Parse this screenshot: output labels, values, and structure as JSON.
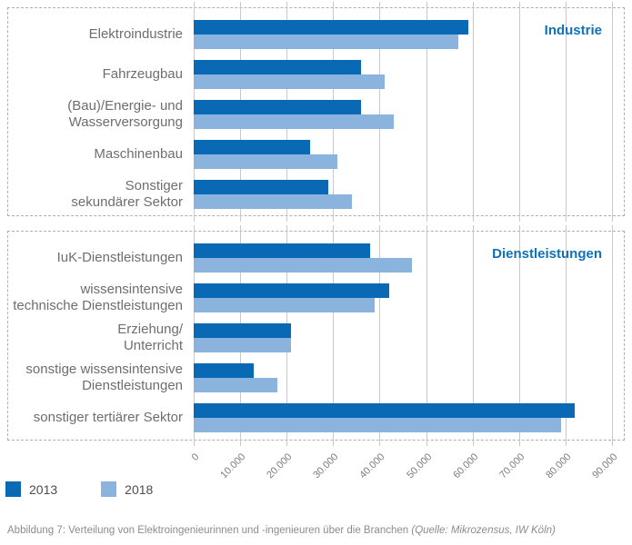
{
  "chart_data": {
    "type": "bar",
    "orientation": "horizontal",
    "xlim": [
      0,
      90000
    ],
    "grid": true,
    "ticks": [
      0,
      10000,
      20000,
      30000,
      40000,
      50000,
      60000,
      70000,
      80000,
      90000
    ],
    "tick_labels": [
      "0",
      "10.000",
      "20.000",
      "30.000",
      "40.000",
      "50.000",
      "60.000",
      "70.000",
      "80.000",
      "90.000"
    ],
    "legend_position": "bottom-left",
    "legend": [
      {
        "name": "2013",
        "color": "#0a69b4"
      },
      {
        "name": "2018",
        "color": "#8ab3dd"
      }
    ],
    "groups": [
      {
        "name": "Industrie",
        "categories": [
          "Elektroindustrie",
          "Fahrzeugbau",
          "(Bau)/Energie- und\nWasserversorgung",
          "Maschinenbau",
          "Sonstiger\nsekundärer Sektor"
        ],
        "series": [
          {
            "name": "2013",
            "values": [
              59000,
              36000,
              36000,
              25000,
              29000
            ]
          },
          {
            "name": "2018",
            "values": [
              57000,
              41000,
              43000,
              31000,
              34000
            ]
          }
        ]
      },
      {
        "name": "Dienstleistungen",
        "categories": [
          "IuK-Dienstleistungen",
          "wissensintensive\ntechnische Dienstleistungen",
          "Erziehung/\nUnterricht",
          "sonstige wissensintensive\nDienstleistungen",
          "sonstiger tertiärer Sektor"
        ],
        "series": [
          {
            "name": "2013",
            "values": [
              38000,
              42000,
              21000,
              13000,
              82000
            ]
          },
          {
            "name": "2018",
            "values": [
              47000,
              39000,
              21000,
              18000,
              79000
            ]
          }
        ]
      }
    ]
  },
  "caption": {
    "text": "Abbildung 7: Verteilung von Elektroingenieurinnen und -ingenieuren über die Branchen ",
    "source": "(Quelle: Mikrozensus, IW Köln)"
  },
  "colors": {
    "series_2013": "#0a69b4",
    "series_2018": "#8ab3dd",
    "header_blue": "#1070b8",
    "gridline": "#c9c9c9",
    "panel_border": "#b0b0b0",
    "label_gray": "#6e6e6e"
  }
}
